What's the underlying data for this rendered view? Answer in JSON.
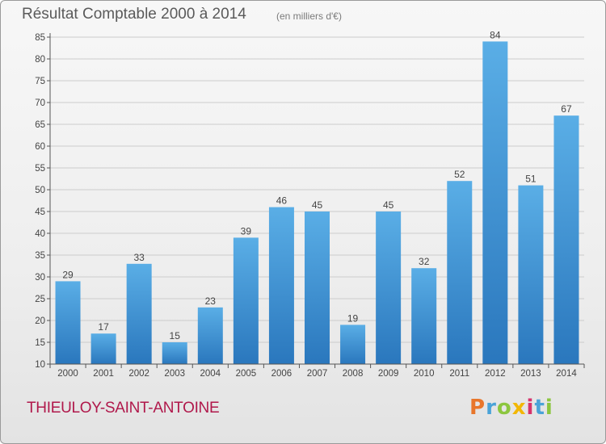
{
  "header": {
    "title": "Résultat Comptable 2000 à 2014",
    "unit_note": "(en milliers d'€)"
  },
  "footer": {
    "commune": "THIEULOY-SAINT-ANTOINE",
    "logo_text": "Proxiti",
    "logo_colors": [
      "#e8762b",
      "#4aa3d8",
      "#8cc63f",
      "#f2b705",
      "#d6336c",
      "#4aa3d8",
      "#8cc63f"
    ]
  },
  "chart_data": {
    "type": "bar",
    "title": "Résultat Comptable 2000 à 2014",
    "subtitle": "(en milliers d'€)",
    "xlabel": "",
    "ylabel": "",
    "categories": [
      "2000",
      "2001",
      "2002",
      "2003",
      "2004",
      "2005",
      "2006",
      "2007",
      "2008",
      "2009",
      "2010",
      "2011",
      "2012",
      "2013",
      "2014"
    ],
    "values": [
      29,
      17,
      33,
      15,
      23,
      39,
      46,
      45,
      19,
      45,
      32,
      52,
      84,
      51,
      67
    ],
    "ylim": [
      10,
      85
    ],
    "yticks": [
      10,
      15,
      20,
      25,
      30,
      35,
      40,
      45,
      50,
      55,
      60,
      65,
      70,
      75,
      80,
      85
    ],
    "grid": true,
    "bar_color": "#3a8fd2",
    "grid_color": "#cccccc"
  }
}
